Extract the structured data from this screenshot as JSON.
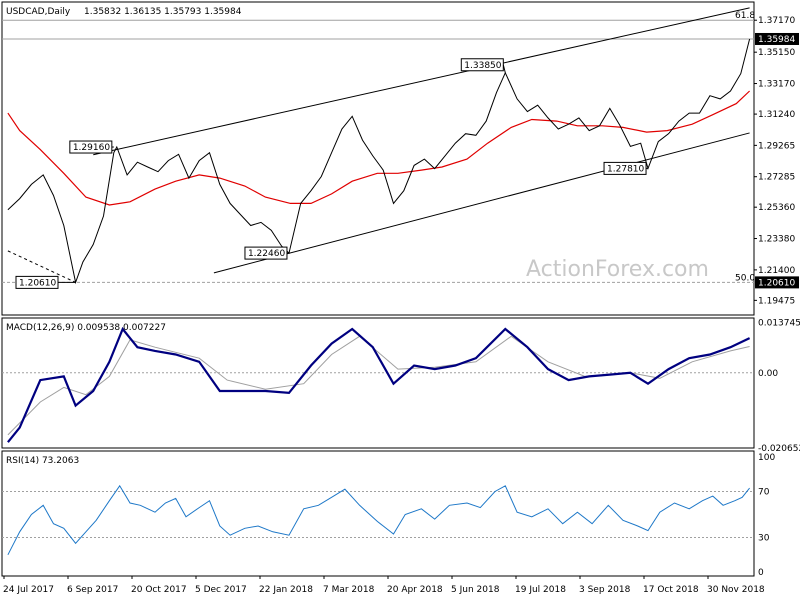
{
  "chart_data": {
    "type": "line",
    "header": {
      "symbol": "USDCAD,Daily",
      "ohlc": "1.35832 1.36135 1.35793 1.35984"
    },
    "watermark": "ActionForex.com",
    "colors": {
      "price": "#000000",
      "ma": "#e00000",
      "channel": "#000000",
      "macd": "#000080",
      "signal": "#a0a0a0",
      "rsi": "#1e78c8",
      "grid": "#a0a0a0",
      "price_tag_bg": "#000000",
      "price_tag_text": "#ffffff"
    },
    "x_labels": [
      "24 Jul 2017",
      "6 Sep 2017",
      "20 Oct 2017",
      "5 Dec 2017",
      "22 Jan 2018",
      "7 Mar 2018",
      "20 Apr 2018",
      "5 Jun 2018",
      "19 Jul 2018",
      "3 Sep 2018",
      "17 Oct 2018",
      "30 Nov 2018"
    ],
    "price_panel": {
      "ylim": [
        1.1855,
        1.3832
      ],
      "y_ticks": [
        "1.37170",
        "1.35150",
        "1.33170",
        "1.31240",
        "1.29265",
        "1.27285",
        "1.25360",
        "1.23380",
        "1.21400",
        "1.19475"
      ],
      "current_price": "1.35984",
      "level_50": "1.20610",
      "fib_labels": {
        "high": "61.8",
        "low": "50.0"
      },
      "fib_levels": [
        1.3717,
        1.2061
      ],
      "annotations": [
        {
          "text": "1.29160",
          "date": "2017-10-04",
          "value": 1.2916
        },
        {
          "text": "1.22460",
          "date": "2018-01-31",
          "value": 1.2246
        },
        {
          "text": "1.33850",
          "date": "2018-06-27",
          "value": 1.3385
        },
        {
          "text": "1.27810",
          "date": "2018-10-02",
          "value": 1.2781
        },
        {
          "text": "1.20610",
          "date": "2017-09-08",
          "value": 1.2061
        }
      ],
      "channel_upper": [
        [
          "2017-09-20",
          1.2867
        ],
        [
          "2018-12-10",
          1.3795
        ]
      ],
      "channel_lower": [
        [
          "2017-12-11",
          1.2121
        ],
        [
          "2018-12-10",
          1.3005
        ]
      ],
      "decline_line": [
        [
          "2017-07-24",
          1.226
        ],
        [
          "2017-09-08",
          1.2061
        ]
      ],
      "price_series": [
        [
          "2017-07-24",
          1.252
        ],
        [
          "2017-08-01",
          1.259
        ],
        [
          "2017-08-09",
          1.268
        ],
        [
          "2017-08-17",
          1.274
        ],
        [
          "2017-08-24",
          1.261
        ],
        [
          "2017-08-31",
          1.242
        ],
        [
          "2017-09-08",
          1.2061
        ],
        [
          "2017-09-13",
          1.219
        ],
        [
          "2017-09-20",
          1.23
        ],
        [
          "2017-09-27",
          1.248
        ],
        [
          "2017-10-04",
          1.288
        ],
        [
          "2017-10-06",
          1.2916
        ],
        [
          "2017-10-13",
          1.274
        ],
        [
          "2017-10-20",
          1.282
        ],
        [
          "2017-10-27",
          1.279
        ],
        [
          "2017-11-03",
          1.276
        ],
        [
          "2017-11-10",
          1.283
        ],
        [
          "2017-11-17",
          1.287
        ],
        [
          "2017-11-24",
          1.272
        ],
        [
          "2017-12-01",
          1.283
        ],
        [
          "2017-12-08",
          1.288
        ],
        [
          "2017-12-15",
          1.268
        ],
        [
          "2017-12-22",
          1.256
        ],
        [
          "2017-12-29",
          1.249
        ],
        [
          "2018-01-05",
          1.242
        ],
        [
          "2018-01-12",
          1.244
        ],
        [
          "2018-01-19",
          1.239
        ],
        [
          "2018-01-26",
          1.229
        ],
        [
          "2018-01-31",
          1.2246
        ],
        [
          "2018-02-08",
          1.256
        ],
        [
          "2018-02-15",
          1.264
        ],
        [
          "2018-02-22",
          1.273
        ],
        [
          "2018-03-01",
          1.288
        ],
        [
          "2018-03-08",
          1.303
        ],
        [
          "2018-03-15",
          1.311
        ],
        [
          "2018-03-22",
          1.296
        ],
        [
          "2018-03-29",
          1.286
        ],
        [
          "2018-04-05",
          1.277
        ],
        [
          "2018-04-12",
          1.256
        ],
        [
          "2018-04-19",
          1.264
        ],
        [
          "2018-04-26",
          1.28
        ],
        [
          "2018-05-03",
          1.284
        ],
        [
          "2018-05-10",
          1.278
        ],
        [
          "2018-05-17",
          1.286
        ],
        [
          "2018-05-24",
          1.294
        ],
        [
          "2018-05-31",
          1.3
        ],
        [
          "2018-06-07",
          1.299
        ],
        [
          "2018-06-14",
          1.308
        ],
        [
          "2018-06-21",
          1.326
        ],
        [
          "2018-06-27",
          1.3385
        ],
        [
          "2018-07-05",
          1.322
        ],
        [
          "2018-07-12",
          1.314
        ],
        [
          "2018-07-19",
          1.318
        ],
        [
          "2018-07-26",
          1.31
        ],
        [
          "2018-08-02",
          1.303
        ],
        [
          "2018-08-09",
          1.306
        ],
        [
          "2018-08-16",
          1.31
        ],
        [
          "2018-08-23",
          1.302
        ],
        [
          "2018-08-30",
          1.305
        ],
        [
          "2018-09-06",
          1.316
        ],
        [
          "2018-09-13",
          1.305
        ],
        [
          "2018-09-20",
          1.292
        ],
        [
          "2018-09-27",
          1.294
        ],
        [
          "2018-10-02",
          1.2781
        ],
        [
          "2018-10-09",
          1.295
        ],
        [
          "2018-10-16",
          1.3
        ],
        [
          "2018-10-23",
          1.308
        ],
        [
          "2018-10-30",
          1.313
        ],
        [
          "2018-11-06",
          1.313
        ],
        [
          "2018-11-13",
          1.324
        ],
        [
          "2018-11-20",
          1.322
        ],
        [
          "2018-11-27",
          1.327
        ],
        [
          "2018-12-04",
          1.338
        ],
        [
          "2018-12-10",
          1.3598
        ]
      ],
      "ma_series": [
        [
          "2017-07-24",
          1.313
        ],
        [
          "2017-08-01",
          1.302
        ],
        [
          "2017-08-15",
          1.29
        ],
        [
          "2017-08-31",
          1.275
        ],
        [
          "2017-09-15",
          1.26
        ],
        [
          "2017-10-01",
          1.255
        ],
        [
          "2017-10-15",
          1.257
        ],
        [
          "2017-11-01",
          1.265
        ],
        [
          "2017-11-15",
          1.27
        ],
        [
          "2017-12-01",
          1.274
        ],
        [
          "2017-12-15",
          1.272
        ],
        [
          "2018-01-01",
          1.267
        ],
        [
          "2018-01-15",
          1.26
        ],
        [
          "2018-02-01",
          1.256
        ],
        [
          "2018-02-15",
          1.256
        ],
        [
          "2018-03-01",
          1.262
        ],
        [
          "2018-03-15",
          1.27
        ],
        [
          "2018-04-01",
          1.275
        ],
        [
          "2018-04-15",
          1.275
        ],
        [
          "2018-05-01",
          1.277
        ],
        [
          "2018-05-15",
          1.279
        ],
        [
          "2018-06-01",
          1.284
        ],
        [
          "2018-06-15",
          1.294
        ],
        [
          "2018-07-01",
          1.304
        ],
        [
          "2018-07-15",
          1.309
        ],
        [
          "2018-08-01",
          1.308
        ],
        [
          "2018-08-15",
          1.305
        ],
        [
          "2018-09-01",
          1.305
        ],
        [
          "2018-09-15",
          1.304
        ],
        [
          "2018-10-01",
          1.301
        ],
        [
          "2018-10-15",
          1.302
        ],
        [
          "2018-11-01",
          1.306
        ],
        [
          "2018-11-15",
          1.312
        ],
        [
          "2018-12-01",
          1.319
        ],
        [
          "2018-12-10",
          1.327
        ]
      ]
    },
    "macd_panel": {
      "label": "MACD(12,26,9) 0.009538 0.007227",
      "ylim": [
        -0.0206,
        0.015
      ],
      "y_ticks": [
        "0.013745",
        "0.00",
        "-0.020652"
      ],
      "y_tick_values": [
        0.013745,
        0.0,
        -0.020652
      ],
      "macd_series": [
        [
          "2017-07-24",
          -0.019
        ],
        [
          "2017-08-01",
          -0.015
        ],
        [
          "2017-08-15",
          -0.002
        ],
        [
          "2017-08-31",
          -0.001
        ],
        [
          "2017-09-08",
          -0.009
        ],
        [
          "2017-09-20",
          -0.005
        ],
        [
          "2017-10-01",
          0.003
        ],
        [
          "2017-10-10",
          0.012
        ],
        [
          "2017-10-20",
          0.007
        ],
        [
          "2017-11-01",
          0.006
        ],
        [
          "2017-11-15",
          0.005
        ],
        [
          "2017-12-01",
          0.003
        ],
        [
          "2017-12-15",
          -0.005
        ],
        [
          "2018-01-01",
          -0.005
        ],
        [
          "2018-01-15",
          -0.005
        ],
        [
          "2018-01-31",
          -0.0055
        ],
        [
          "2018-02-15",
          0.002
        ],
        [
          "2018-03-01",
          0.008
        ],
        [
          "2018-03-15",
          0.012
        ],
        [
          "2018-03-29",
          0.007
        ],
        [
          "2018-04-12",
          -0.003
        ],
        [
          "2018-04-26",
          0.002
        ],
        [
          "2018-05-10",
          0.001
        ],
        [
          "2018-05-24",
          0.002
        ],
        [
          "2018-06-07",
          0.004
        ],
        [
          "2018-06-27",
          0.012
        ],
        [
          "2018-07-12",
          0.007
        ],
        [
          "2018-07-26",
          0.001
        ],
        [
          "2018-08-09",
          -0.002
        ],
        [
          "2018-08-23",
          -0.001
        ],
        [
          "2018-09-06",
          -0.0005
        ],
        [
          "2018-09-20",
          0.0
        ],
        [
          "2018-10-02",
          -0.003
        ],
        [
          "2018-10-16",
          0.001
        ],
        [
          "2018-10-30",
          0.004
        ],
        [
          "2018-11-13",
          0.005
        ],
        [
          "2018-11-27",
          0.007
        ],
        [
          "2018-12-10",
          0.0095
        ]
      ],
      "signal_series": [
        [
          "2017-07-24",
          -0.017
        ],
        [
          "2017-08-15",
          -0.008
        ],
        [
          "2017-08-31",
          -0.004
        ],
        [
          "2017-09-15",
          -0.006
        ],
        [
          "2017-10-01",
          -0.001
        ],
        [
          "2017-10-15",
          0.009
        ],
        [
          "2017-11-01",
          0.007
        ],
        [
          "2017-12-01",
          0.004
        ],
        [
          "2017-12-20",
          -0.002
        ],
        [
          "2018-01-15",
          -0.0045
        ],
        [
          "2018-02-10",
          -0.003
        ],
        [
          "2018-03-01",
          0.005
        ],
        [
          "2018-03-20",
          0.01
        ],
        [
          "2018-04-15",
          0.001
        ],
        [
          "2018-05-10",
          0.0015
        ],
        [
          "2018-06-07",
          0.003
        ],
        [
          "2018-07-01",
          0.01
        ],
        [
          "2018-07-26",
          0.003
        ],
        [
          "2018-08-20",
          -0.001
        ],
        [
          "2018-09-20",
          0.0
        ],
        [
          "2018-10-10",
          -0.0015
        ],
        [
          "2018-11-01",
          0.003
        ],
        [
          "2018-11-27",
          0.006
        ],
        [
          "2018-12-10",
          0.0072
        ]
      ]
    },
    "rsi_panel": {
      "label": "RSI(14) 73.2063",
      "ylim": [
        0,
        100
      ],
      "y_ticks": [
        "100",
        "70",
        "30",
        "0"
      ],
      "y_tick_values": [
        100,
        70,
        30,
        0
      ],
      "rsi_series": [
        [
          "2017-07-24",
          15
        ],
        [
          "2017-08-01",
          35
        ],
        [
          "2017-08-09",
          50
        ],
        [
          "2017-08-17",
          58
        ],
        [
          "2017-08-24",
          42
        ],
        [
          "2017-08-31",
          38
        ],
        [
          "2017-09-08",
          25
        ],
        [
          "2017-09-15",
          35
        ],
        [
          "2017-09-22",
          45
        ],
        [
          "2017-10-01",
          62
        ],
        [
          "2017-10-08",
          75
        ],
        [
          "2017-10-15",
          60
        ],
        [
          "2017-10-22",
          58
        ],
        [
          "2017-11-01",
          52
        ],
        [
          "2017-11-08",
          60
        ],
        [
          "2017-11-15",
          64
        ],
        [
          "2017-11-22",
          48
        ],
        [
          "2017-12-01",
          56
        ],
        [
          "2017-12-08",
          62
        ],
        [
          "2017-12-15",
          40
        ],
        [
          "2017-12-22",
          32
        ],
        [
          "2018-01-01",
          38
        ],
        [
          "2018-01-10",
          40
        ],
        [
          "2018-01-20",
          35
        ],
        [
          "2018-01-31",
          32
        ],
        [
          "2018-02-10",
          55
        ],
        [
          "2018-02-20",
          58
        ],
        [
          "2018-03-01",
          65
        ],
        [
          "2018-03-10",
          72
        ],
        [
          "2018-03-20",
          58
        ],
        [
          "2018-04-01",
          44
        ],
        [
          "2018-04-12",
          33
        ],
        [
          "2018-04-20",
          50
        ],
        [
          "2018-05-01",
          55
        ],
        [
          "2018-05-10",
          46
        ],
        [
          "2018-05-20",
          58
        ],
        [
          "2018-06-01",
          60
        ],
        [
          "2018-06-10",
          56
        ],
        [
          "2018-06-20",
          70
        ],
        [
          "2018-06-27",
          75
        ],
        [
          "2018-07-05",
          52
        ],
        [
          "2018-07-15",
          48
        ],
        [
          "2018-07-26",
          55
        ],
        [
          "2018-08-05",
          42
        ],
        [
          "2018-08-15",
          52
        ],
        [
          "2018-08-25",
          42
        ],
        [
          "2018-09-05",
          58
        ],
        [
          "2018-09-15",
          45
        ],
        [
          "2018-09-25",
          40
        ],
        [
          "2018-10-02",
          36
        ],
        [
          "2018-10-10",
          52
        ],
        [
          "2018-10-20",
          60
        ],
        [
          "2018-10-30",
          55
        ],
        [
          "2018-11-08",
          62
        ],
        [
          "2018-11-15",
          66
        ],
        [
          "2018-11-22",
          58
        ],
        [
          "2018-11-30",
          62
        ],
        [
          "2018-12-05",
          65
        ],
        [
          "2018-12-10",
          73
        ]
      ]
    }
  }
}
